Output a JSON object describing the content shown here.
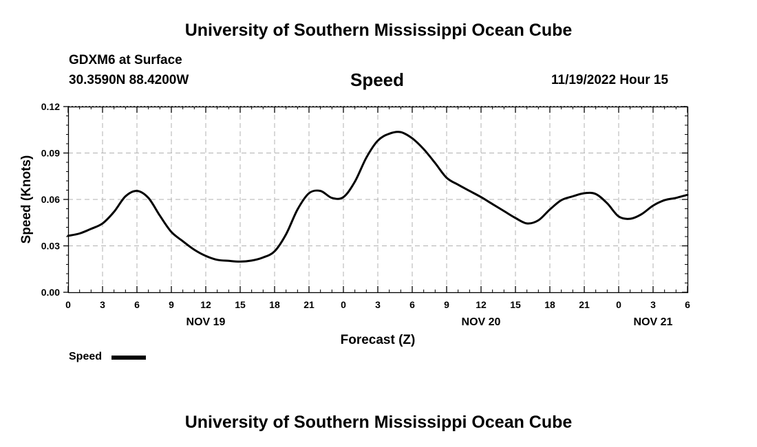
{
  "header": {
    "title": "University of Southern Mississippi Ocean Cube",
    "station": "GDXM6 at Surface",
    "coords": "30.3590N  88.4200W",
    "datetime": "11/19/2022 Hour 15"
  },
  "footer": {
    "title": "University of Southern Mississippi Ocean Cube"
  },
  "chart_data": {
    "type": "line",
    "title": "Speed",
    "xlabel": "Forecast (Z)",
    "ylabel": "Speed (Knots)",
    "ylim": [
      0,
      0.12
    ],
    "xlim": [
      0,
      54
    ],
    "yticks": [
      "0.00",
      "0.03",
      "0.06",
      "0.09",
      "0.12"
    ],
    "ytick_values": [
      0,
      0.03,
      0.06,
      0.09,
      0.12
    ],
    "xtick_labels": [
      "0",
      "3",
      "6",
      "9",
      "12",
      "15",
      "18",
      "21",
      "0",
      "3",
      "6",
      "9",
      "12",
      "15",
      "18",
      "21",
      "0",
      "3",
      "6"
    ],
    "date_labels": [
      {
        "label": "NOV 19",
        "x": 12
      },
      {
        "label": "NOV 20",
        "x": 36
      },
      {
        "label": "NOV 21",
        "x": 51
      }
    ],
    "grid": true,
    "legend": {
      "label": "Speed",
      "position": "bottom-left"
    },
    "series": [
      {
        "name": "Speed",
        "color": "#000000",
        "x": [
          0,
          1,
          2,
          3,
          4,
          5,
          6,
          7,
          8,
          9,
          10,
          11,
          12,
          13,
          14,
          15,
          16,
          17,
          18,
          19,
          20,
          21,
          22,
          23,
          24,
          25,
          26,
          27,
          28,
          29,
          30,
          31,
          32,
          33,
          34,
          35,
          36,
          37,
          38,
          39,
          40,
          41,
          42,
          43,
          44,
          45,
          46,
          47,
          48,
          49,
          50,
          51,
          52,
          53,
          54
        ],
        "values": [
          0.0365,
          0.038,
          0.041,
          0.0445,
          0.052,
          0.062,
          0.0655,
          0.061,
          0.0495,
          0.039,
          0.033,
          0.0275,
          0.0235,
          0.021,
          0.0203,
          0.0198,
          0.0205,
          0.0225,
          0.0265,
          0.0375,
          0.0535,
          0.064,
          0.0655,
          0.061,
          0.0615,
          0.0715,
          0.087,
          0.098,
          0.1025,
          0.1035,
          0.0995,
          0.0925,
          0.0835,
          0.074,
          0.0695,
          0.0655,
          0.0615,
          0.057,
          0.0525,
          0.048,
          0.0445,
          0.0465,
          0.0535,
          0.0595,
          0.062,
          0.064,
          0.0635,
          0.0575,
          0.049,
          0.0475,
          0.0505,
          0.056,
          0.0595,
          0.061,
          0.063
        ]
      }
    ]
  }
}
